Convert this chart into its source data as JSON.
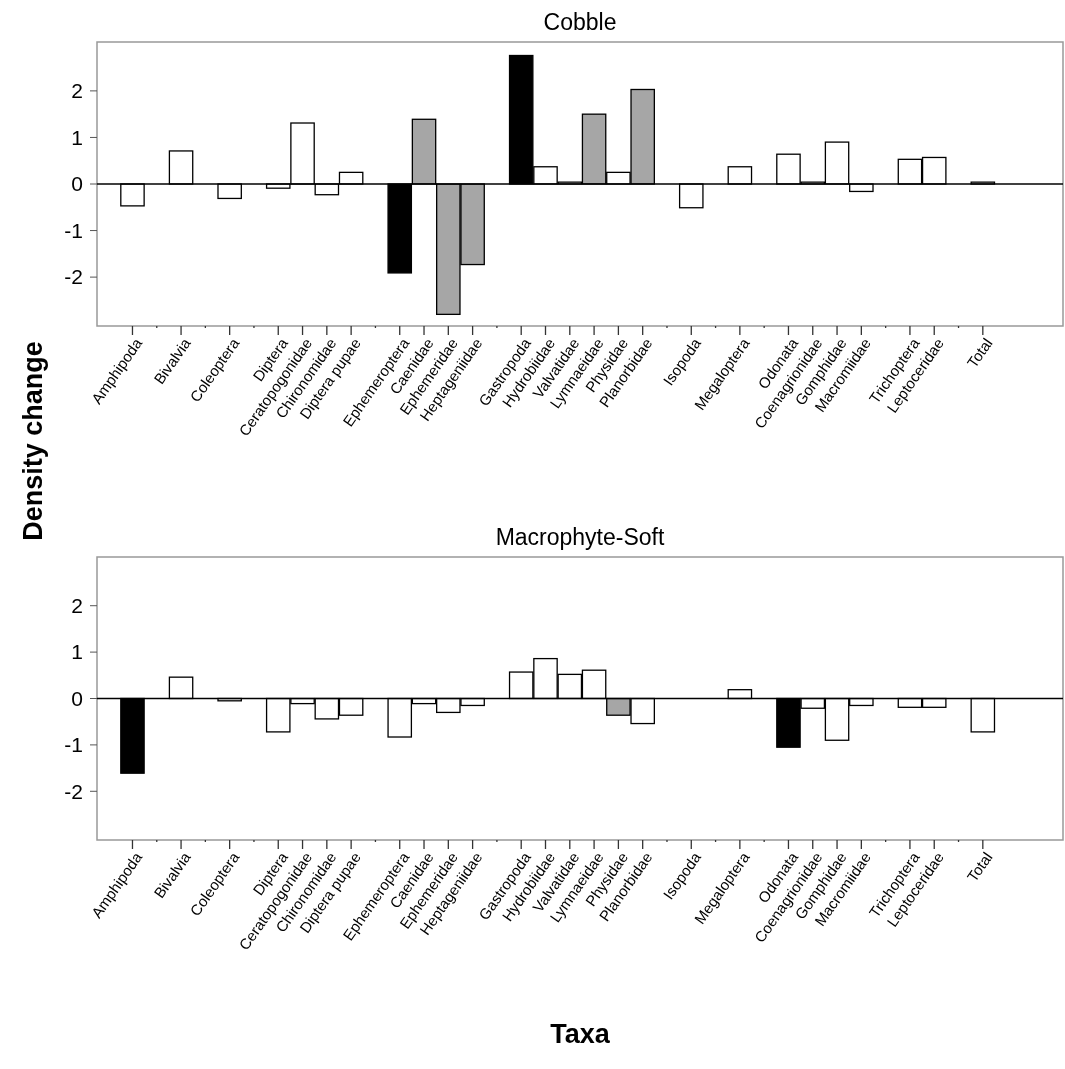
{
  "chart_data": [
    {
      "type": "bar",
      "title": "Cobble",
      "ylabel": "Density change",
      "categories": [
        "Amphipoda",
        null,
        "Bivalvia",
        null,
        "Coleoptera",
        null,
        "Diptera",
        "Ceratopogonidae",
        "Chironomidae",
        "Diptera pupae",
        null,
        "Ephemeroptera",
        "Caenidae",
        "Ephemeridae",
        "Heptageniidae",
        null,
        "Gastropoda",
        "Hydrobiidae",
        "Valvatidae",
        "Lymnaeidae",
        "Physidae",
        "Planorbidae",
        null,
        "Isopoda",
        null,
        "Megaloptera",
        null,
        "Odonata",
        "Coenagrionidae",
        "Gomphidae",
        "Macromiidae",
        null,
        "Trichoptera",
        "Leptoceridae",
        null,
        "Total"
      ],
      "values": [
        -0.47,
        null,
        0.71,
        null,
        -0.31,
        null,
        -0.09,
        1.31,
        -0.23,
        0.25,
        null,
        -1.91,
        1.39,
        -2.8,
        -1.73,
        null,
        2.76,
        0.37,
        0.04,
        1.5,
        0.25,
        2.03,
        null,
        -0.51,
        null,
        0.37,
        null,
        0.64,
        0.04,
        0.9,
        -0.16,
        null,
        0.53,
        0.57,
        null,
        0.04
      ],
      "colors": [
        "#ffffff",
        null,
        "#ffffff",
        null,
        "#ffffff",
        null,
        "#ffffff",
        "#ffffff",
        "#ffffff",
        "#ffffff",
        null,
        "#000000",
        "#a6a6a6",
        "#a6a6a6",
        "#a6a6a6",
        null,
        "#000000",
        "#ffffff",
        "#ffffff",
        "#a6a6a6",
        "#ffffff",
        "#a6a6a6",
        null,
        "#ffffff",
        null,
        "#ffffff",
        null,
        "#ffffff",
        "#ffffff",
        "#ffffff",
        "#ffffff",
        null,
        "#ffffff",
        "#ffffff",
        null,
        "#ffffff"
      ],
      "ylim": [
        -3.05,
        3.05
      ],
      "yticks": [
        -2,
        -1,
        0,
        1,
        2
      ]
    },
    {
      "type": "bar",
      "title": "Macrophyte-Soft",
      "xlabel": "Taxa",
      "categories": [
        "Amphipoda",
        null,
        "Bivalvia",
        null,
        "Coleoptera",
        null,
        "Diptera",
        "Ceratopogonidae",
        "Chironomidae",
        "Diptera pupae",
        null,
        "Ephemeroptera",
        "Caenidae",
        "Ephemeridae",
        "Heptageniidae",
        null,
        "Gastropoda",
        "Hydrobiidae",
        "Valvatidae",
        "Lymnaeidae",
        "Physidae",
        "Planorbidae",
        null,
        "Isopoda",
        null,
        "Megaloptera",
        null,
        "Odonata",
        "Coenagrionidae",
        "Gomphidae",
        "Macromiidae",
        null,
        "Trichoptera",
        "Leptoceridae",
        null,
        "Total"
      ],
      "values": [
        -1.61,
        null,
        0.46,
        null,
        -0.05,
        null,
        -0.72,
        -0.11,
        -0.44,
        -0.36,
        null,
        -0.83,
        -0.11,
        -0.3,
        -0.15,
        null,
        0.57,
        0.86,
        0.52,
        0.61,
        -0.36,
        -0.54,
        null,
        null,
        null,
        0.19,
        null,
        -1.05,
        -0.21,
        -0.9,
        -0.15,
        null,
        -0.19,
        -0.19,
        null,
        -0.72
      ],
      "colors": [
        "#000000",
        null,
        "#ffffff",
        null,
        "#ffffff",
        null,
        "#ffffff",
        "#ffffff",
        "#ffffff",
        "#ffffff",
        null,
        "#ffffff",
        "#ffffff",
        "#ffffff",
        "#ffffff",
        null,
        "#ffffff",
        "#ffffff",
        "#ffffff",
        "#ffffff",
        "#a6a6a6",
        "#ffffff",
        null,
        null,
        null,
        "#ffffff",
        null,
        "#000000",
        "#ffffff",
        "#ffffff",
        "#ffffff",
        null,
        "#ffffff",
        "#ffffff",
        null,
        "#ffffff"
      ],
      "ylim": [
        -3.05,
        3.05
      ],
      "yticks": [
        -2,
        -1,
        0,
        1,
        2
      ]
    }
  ]
}
